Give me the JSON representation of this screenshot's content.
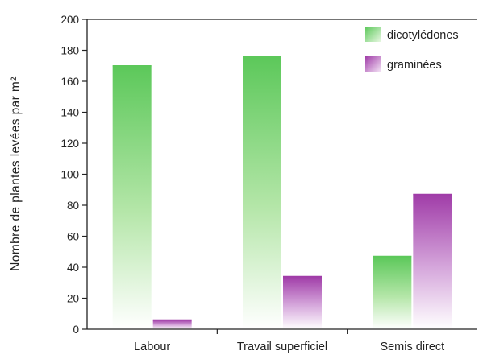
{
  "chart_data": {
    "type": "bar",
    "title": "",
    "xlabel": "",
    "ylabel": "Nombre de plantes levées par m²",
    "ylim": [
      0,
      200
    ],
    "yticks": [
      0,
      20,
      40,
      60,
      80,
      100,
      120,
      140,
      160,
      180,
      200
    ],
    "grid": false,
    "legend_position": "top-right",
    "categories": [
      "Labour",
      "Travail superficiel",
      "Semis direct"
    ],
    "series": [
      {
        "name": "dicotylédones",
        "values": [
          170,
          176,
          47
        ],
        "color": "#5cc85a"
      },
      {
        "name": "graminées",
        "values": [
          6,
          34,
          87
        ],
        "color": "#a03ca8"
      }
    ]
  }
}
